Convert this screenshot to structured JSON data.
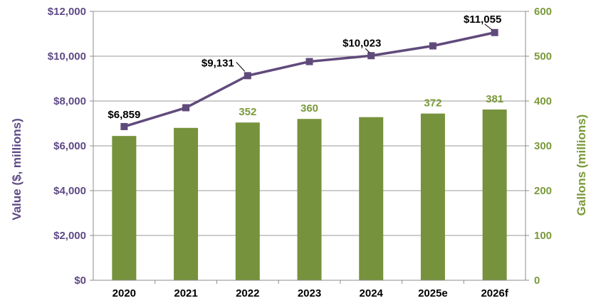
{
  "chart_data": {
    "type": "bar+line",
    "categories": [
      "2020",
      "2021",
      "2022",
      "2023",
      "2024",
      "2025e",
      "2026f"
    ],
    "series": [
      {
        "name": "Gallons",
        "type": "bar",
        "axis": "right",
        "values": [
          322,
          340,
          352,
          360,
          364,
          372,
          381
        ],
        "data_labels": [
          "",
          "",
          "352",
          "360",
          "",
          "372",
          "381"
        ],
        "color": "#76923c"
      },
      {
        "name": "Value",
        "type": "line",
        "axis": "left",
        "values": [
          6859,
          7700,
          9131,
          9760,
          10023,
          10460,
          11055
        ],
        "data_labels": [
          "$6,859",
          "",
          "$9,131",
          "",
          "$10,023",
          "",
          "$11,055"
        ],
        "color": "#604a7b"
      }
    ],
    "left_axis": {
      "title": "Value ($, millions)",
      "range": [
        0,
        12000
      ],
      "ticks": [
        "$0",
        "$2,000",
        "$4,000",
        "$6,000",
        "$8,000",
        "$10,000",
        "$12,000"
      ],
      "color": "#5f4a86"
    },
    "right_axis": {
      "title": "Gallons (millions)",
      "range": [
        0,
        600
      ],
      "ticks": [
        "0",
        "100",
        "200",
        "300",
        "400",
        "500",
        "600"
      ],
      "color": "#7a9a3a"
    },
    "grid": true,
    "legend": "none"
  }
}
